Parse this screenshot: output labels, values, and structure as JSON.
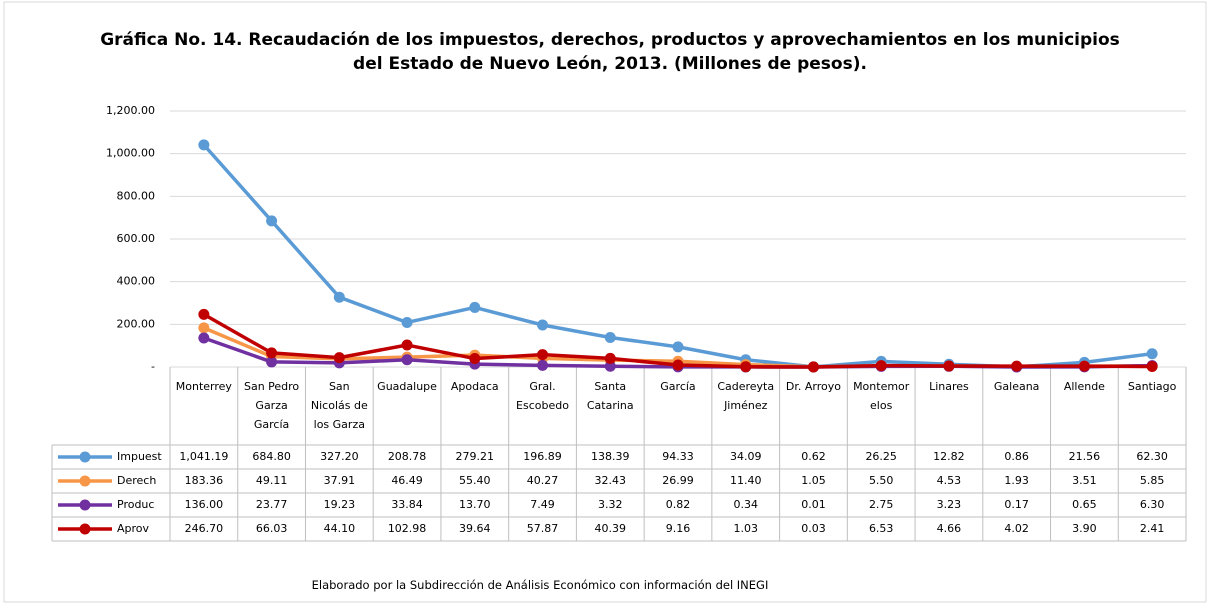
{
  "chart_data": {
    "type": "line",
    "title": "Gráfica No. 14. Recaudación de los impuestos, derechos, productos y aprovechamientos en los municipios del Estado de Nuevo León, 2013. (Millones de pesos).",
    "note": "Elaborado por la Subdirección de Análisis Económico con información del INEGI",
    "categories": [
      "Monterrey",
      "San Pedro Garza García",
      "San Nicolás de los Garza",
      "Guadalupe",
      "Apodaca",
      "Gral. Escobedo",
      "Santa Catarina",
      "García",
      "Cadereyta Jiménez",
      "Dr. Arroyo",
      "Montemorelos",
      "Linares",
      "Galeana",
      "Allende",
      "Santiago"
    ],
    "series": [
      {
        "name": "Impuest",
        "color": "#5b9bd5",
        "values": [
          1041.19,
          684.8,
          327.2,
          208.78,
          279.21,
          196.89,
          138.39,
          94.33,
          34.09,
          0.62,
          26.25,
          12.82,
          0.86,
          21.56,
          62.3
        ],
        "value_labels": [
          "1,041.19",
          "684.80",
          "327.20",
          "208.78",
          "279.21",
          "196.89",
          "138.39",
          "94.33",
          "34.09",
          "0.62",
          "26.25",
          "12.82",
          "0.86",
          "21.56",
          "62.30"
        ]
      },
      {
        "name": "Derech",
        "color": "#f79646",
        "values": [
          183.36,
          49.11,
          37.91,
          46.49,
          55.4,
          40.27,
          32.43,
          26.99,
          11.4,
          1.05,
          5.5,
          4.53,
          1.93,
          3.51,
          5.85
        ],
        "value_labels": [
          "183.36",
          "49.11",
          "37.91",
          "46.49",
          "55.40",
          "40.27",
          "32.43",
          "26.99",
          "11.40",
          "1.05",
          "5.50",
          "4.53",
          "1.93",
          "3.51",
          "5.85"
        ]
      },
      {
        "name": "Produc",
        "color": "#7030a0",
        "values": [
          136.0,
          23.77,
          19.23,
          33.84,
          13.7,
          7.49,
          3.32,
          0.82,
          0.34,
          0.01,
          2.75,
          3.23,
          0.17,
          0.65,
          6.3
        ],
        "value_labels": [
          "136.00",
          "23.77",
          "19.23",
          "33.84",
          "13.70",
          "7.49",
          "3.32",
          "0.82",
          "0.34",
          "0.01",
          "2.75",
          "3.23",
          "0.17",
          "0.65",
          "6.30"
        ]
      },
      {
        "name": "Aprov",
        "color": "#c00000",
        "values": [
          246.7,
          66.03,
          44.1,
          102.98,
          39.64,
          57.87,
          40.39,
          9.16,
          1.03,
          0.03,
          6.53,
          4.66,
          4.02,
          3.9,
          2.41
        ],
        "value_labels": [
          "246.70",
          "66.03",
          "44.10",
          "102.98",
          "39.64",
          "57.87",
          "40.39",
          "9.16",
          "1.03",
          "0.03",
          "6.53",
          "4.66",
          "4.02",
          "3.90",
          "2.41"
        ]
      }
    ],
    "ylim": [
      0,
      1200
    ],
    "yticks": [
      {
        "value": 0,
        "label": "-"
      },
      {
        "value": 200,
        "label": "200.00"
      },
      {
        "value": 400,
        "label": "400.00"
      },
      {
        "value": 600,
        "label": "600.00"
      },
      {
        "value": 800,
        "label": "800.00"
      },
      {
        "value": 1000,
        "label": "1,000.00"
      },
      {
        "value": 1200,
        "label": "1,200.00"
      }
    ],
    "grid": true
  }
}
